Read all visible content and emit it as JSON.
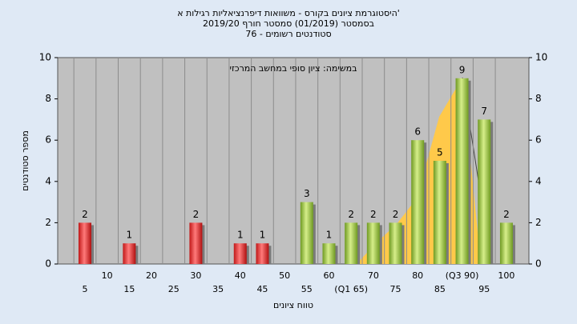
{
  "chart_data": {
    "type": "bar",
    "title": [
      "היסטוגרמת ציונים בקורס - משוואות דיפרנציאליות רגילות א'",
      "בסמסטר  (01/2019)  סמסטר חורף  2019/20",
      "סטודנטים רשומים - 76"
    ],
    "annotation": "במשימה: ציון סופי במחשב המרכזי",
    "x_label": "טווח ציונים",
    "y_label": "מספר סטודנטים",
    "categories": [
      5,
      10,
      15,
      20,
      25,
      30,
      35,
      40,
      45,
      50,
      55,
      60,
      "(Q1 65)",
      70,
      75,
      80,
      85,
      "(Q3 90)",
      95,
      100
    ],
    "values": [
      2,
      0,
      1,
      0,
      0,
      2,
      0,
      1,
      1,
      0,
      3,
      1,
      2,
      2,
      2,
      6,
      5,
      9,
      7,
      2
    ],
    "value_labels": [
      "2",
      null,
      "1",
      null,
      null,
      "2",
      null,
      "1",
      "1",
      null,
      "3",
      "1",
      "2",
      "2",
      "2",
      "6",
      "5",
      "9",
      "7",
      "2"
    ],
    "colors": [
      "#e03030",
      "#e03030",
      "#e03030",
      "#e03030",
      "#e03030",
      "#e03030",
      "#e03030",
      "#e03030",
      "#e03030",
      "#e03030",
      "#9cc43c",
      "#9cc43c",
      "#9cc43c",
      "#9cc43c",
      "#9cc43c",
      "#9cc43c",
      "#9cc43c",
      "#9cc43c",
      "#9cc43c",
      "#9cc43c"
    ],
    "ylim": [
      0,
      10
    ],
    "yticks": [
      0,
      2,
      4,
      6,
      8,
      10
    ],
    "y2lim": [
      0,
      10
    ],
    "y2ticks": [
      0,
      2,
      4,
      6,
      8,
      10
    ],
    "grid": true
  }
}
